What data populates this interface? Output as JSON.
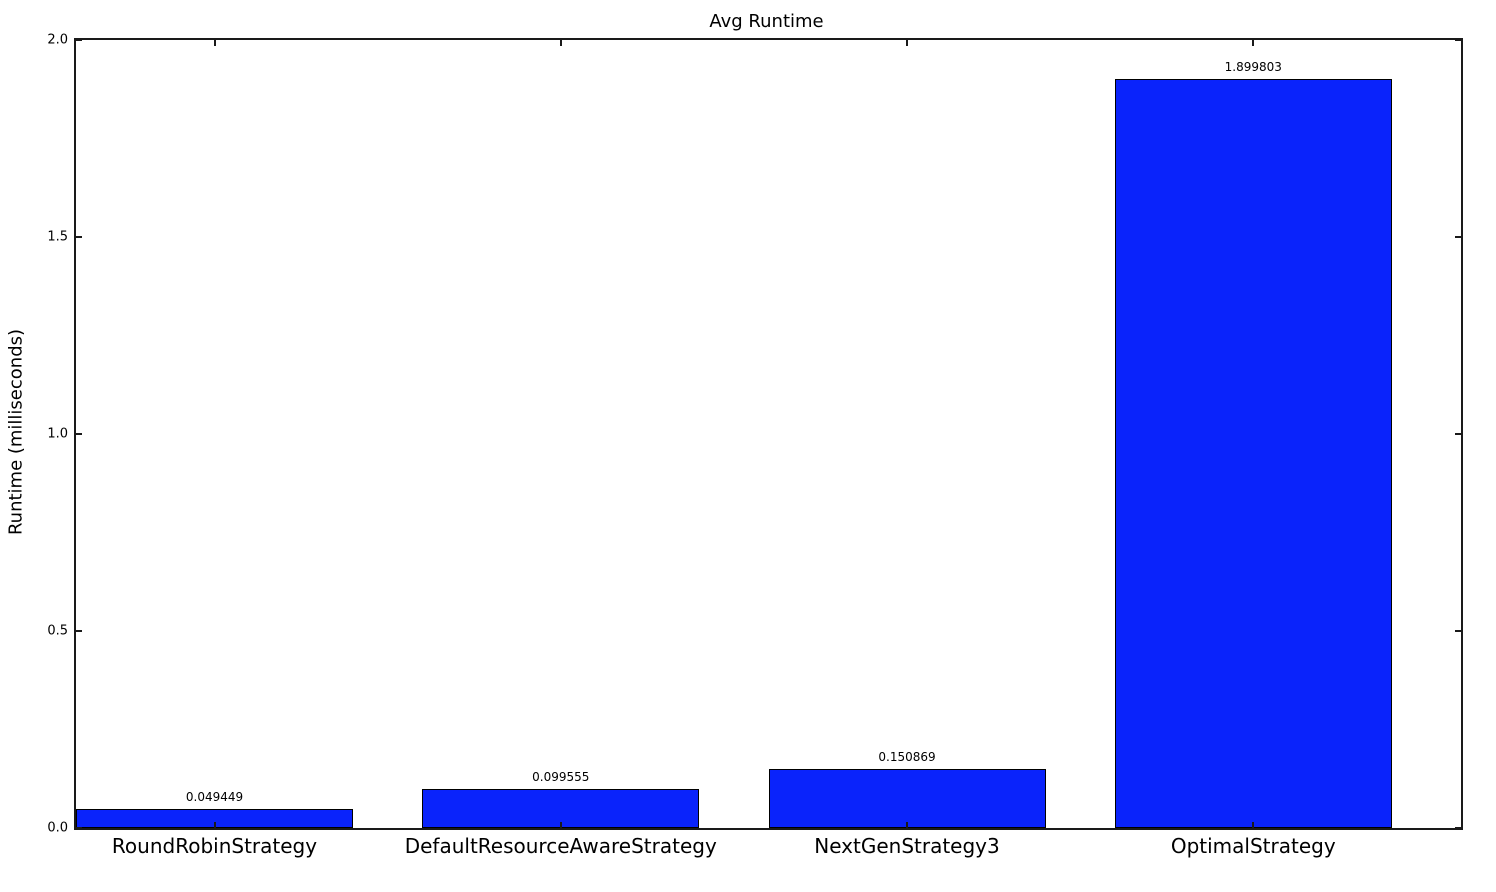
{
  "figure": {
    "background_color": "#ffffff",
    "text_color": "#000000",
    "spine_color": "#1a1a1a"
  },
  "chart_data": {
    "type": "bar",
    "title": "Avg Runtime",
    "xlabel": "",
    "ylabel": "Runtime (milliseconds)",
    "categories": [
      "RoundRobinStrategy",
      "DefaultResourceAwareStrategy",
      "NextGenStrategy3",
      "OptimalStrategy"
    ],
    "values": [
      0.049449,
      0.099555,
      0.150869,
      1.899803
    ],
    "value_labels": [
      "0.049449",
      "0.099555",
      "0.150869",
      "1.899803"
    ],
    "ylim": [
      0,
      2.0
    ],
    "yticks": [
      0.0,
      0.5,
      1.0,
      1.5,
      2.0
    ],
    "ytick_labels": [
      "0.0",
      "0.5",
      "1.0",
      "1.5",
      "2.0"
    ],
    "bar_width_fraction": 0.8,
    "bar_color": "#0a23fb",
    "bar_edge_color": "#000000",
    "grid": false,
    "legend": "none",
    "tick_direction": "in"
  }
}
